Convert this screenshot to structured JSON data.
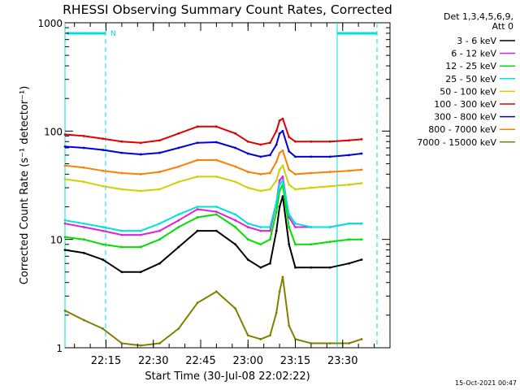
{
  "chart_data": {
    "type": "line",
    "title": "RHESSI Observing Summary Count Rates, Corrected",
    "xlabel": "Start Time (30-Jul-08 22:02:22)",
    "ylabel": "Corrected Count Rate (s⁻¹ detector⁻¹)",
    "y_scale": "log",
    "xlim": [
      "22:02",
      "23:45"
    ],
    "ylim": [
      1,
      1000
    ],
    "x_ticks": [
      "22:15",
      "22:30",
      "22:45",
      "23:00",
      "23:15",
      "23:30"
    ],
    "y_ticks": [
      "1",
      "10",
      "100",
      "1000"
    ],
    "grid": false,
    "legend": {
      "header": [
        "Det 1,3,4,5,6,9,",
        "Att 0"
      ],
      "placement": "right"
    },
    "flag_label": "N",
    "timestamp": "15-Oct-2021 00:47",
    "x": [
      "22:02",
      "22:08",
      "22:14",
      "22:20",
      "22:26",
      "22:32",
      "22:38",
      "22:44",
      "22:50",
      "22:56",
      "23:00",
      "23:04",
      "23:07",
      "23:09",
      "23:10",
      "23:11",
      "23:13",
      "23:15",
      "23:20",
      "23:26",
      "23:32",
      "23:36"
    ],
    "series": [
      {
        "name": "3 - 6 keV",
        "color": "#000000",
        "values": [
          8,
          7.5,
          6.5,
          5,
          5,
          6,
          8.5,
          12,
          12,
          9,
          6.5,
          5.5,
          6,
          12,
          20,
          25,
          9,
          5.5,
          5.5,
          5.5,
          6,
          6.5
        ]
      },
      {
        "name": "6 - 12 keV",
        "color": "#e020e0",
        "values": [
          14,
          13,
          12,
          11,
          11,
          12,
          15,
          19,
          18,
          15,
          13,
          12,
          12,
          22,
          35,
          38,
          16,
          13,
          13,
          13,
          14,
          14
        ]
      },
      {
        "name": "12 - 25 keV",
        "color": "#00e000",
        "values": [
          10.5,
          10,
          9,
          8.5,
          8.5,
          10,
          13,
          16,
          17,
          13,
          10,
          9,
          10,
          18,
          28,
          32,
          13,
          9,
          9,
          9.5,
          10,
          10
        ]
      },
      {
        "name": "25 - 50 keV",
        "color": "#00e0e0",
        "values": [
          15,
          14,
          13,
          12,
          12,
          14,
          17,
          20,
          20,
          17,
          14,
          13,
          13,
          22,
          32,
          35,
          17,
          14,
          13,
          13,
          14,
          14
        ]
      },
      {
        "name": "50 - 100 keV",
        "color": "#d0d000",
        "values": [
          36,
          34,
          31,
          29,
          28,
          29,
          34,
          38,
          38,
          34,
          30,
          28,
          29,
          35,
          44,
          48,
          32,
          29,
          30,
          31,
          32,
          33
        ]
      },
      {
        "name": "100 - 300 keV",
        "color": "#e00000",
        "values": [
          93,
          90,
          85,
          80,
          78,
          82,
          95,
          110,
          110,
          95,
          80,
          75,
          78,
          100,
          125,
          130,
          88,
          80,
          80,
          80,
          82,
          84
        ]
      },
      {
        "name": "300 - 800 keV",
        "color": "#0000e0",
        "values": [
          72,
          70,
          67,
          63,
          61,
          63,
          70,
          78,
          79,
          70,
          62,
          58,
          60,
          75,
          95,
          100,
          65,
          58,
          58,
          58,
          60,
          62
        ]
      },
      {
        "name": "800 - 7000 keV",
        "color": "#ff8000",
        "values": [
          48,
          46,
          43,
          41,
          40,
          42,
          47,
          54,
          54,
          47,
          42,
          40,
          41,
          52,
          63,
          66,
          44,
          40,
          41,
          42,
          43,
          44
        ]
      },
      {
        "name": "7000 - 15000 keV",
        "color": "#808000",
        "values": [
          2.2,
          1.8,
          1.5,
          1.1,
          1.05,
          1.1,
          1.5,
          2.6,
          3.3,
          2.3,
          1.3,
          1.2,
          1.3,
          2.1,
          3.3,
          4.5,
          1.6,
          1.2,
          1.1,
          1.1,
          1.1,
          1.2
        ]
      }
    ]
  }
}
